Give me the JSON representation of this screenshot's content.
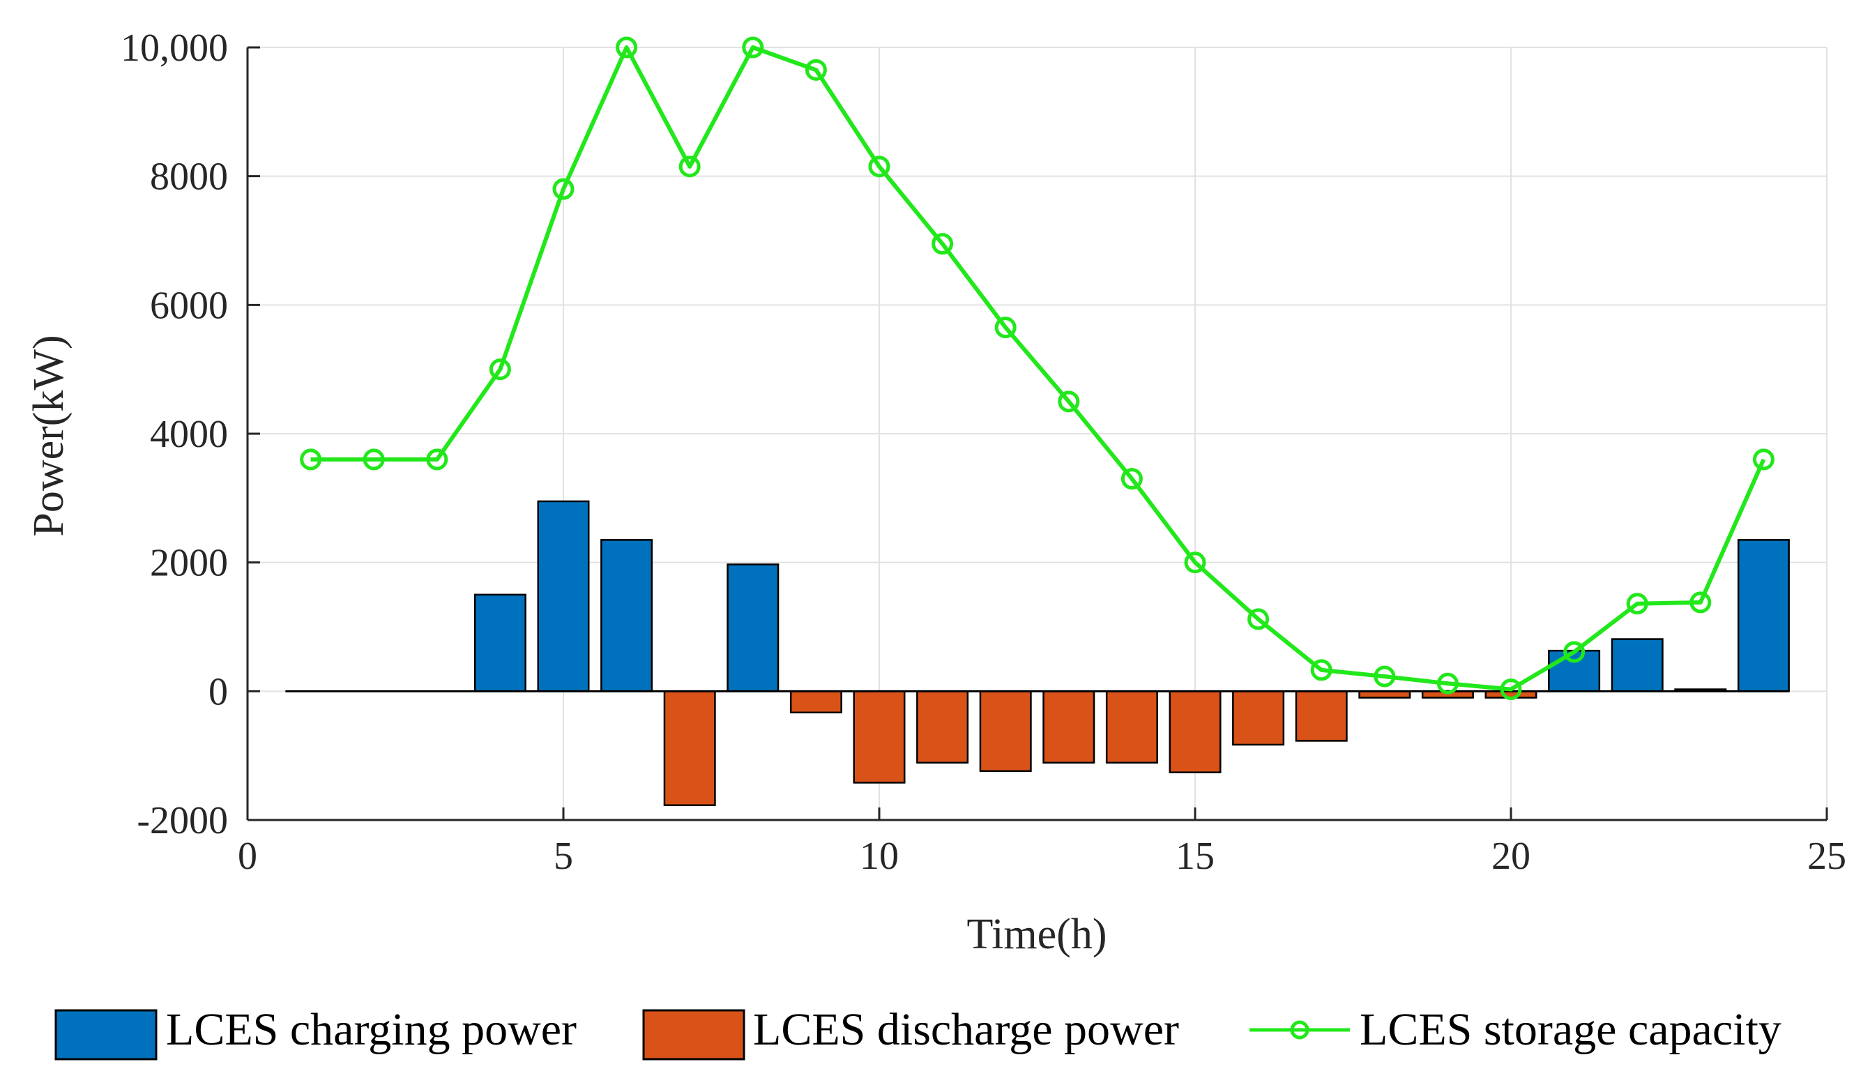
{
  "chart_data": {
    "type": "bar",
    "title": "",
    "xlabel": "Time(h)",
    "ylabel": "Power(kW)",
    "xlim": [
      0,
      25
    ],
    "ylim": [
      -2000,
      10000
    ],
    "xticks": [
      0,
      5,
      10,
      15,
      20,
      25
    ],
    "xtick_labels": [
      "0",
      "5",
      "10",
      "15",
      "20",
      "25"
    ],
    "yticks": [
      -2000,
      0,
      2000,
      4000,
      6000,
      8000,
      10000
    ],
    "ytick_labels": [
      "-2000",
      "0",
      "2000",
      "4000",
      "6000",
      "8000",
      "10,000"
    ],
    "grid": true,
    "legend_position": "bottom",
    "x": [
      1,
      2,
      3,
      4,
      5,
      6,
      7,
      8,
      9,
      10,
      11,
      12,
      13,
      14,
      15,
      16,
      17,
      18,
      19,
      20,
      21,
      22,
      23,
      24
    ],
    "series": [
      {
        "name": "LCES charging power",
        "kind": "bar",
        "color": "#0072BD",
        "values": [
          0,
          0,
          0,
          1500,
          2950,
          2350,
          0,
          1970,
          0,
          0,
          0,
          0,
          0,
          0,
          0,
          0,
          0,
          0,
          0,
          0,
          630,
          810,
          30,
          2350
        ]
      },
      {
        "name": "LCES discharge power",
        "kind": "bar",
        "color": "#D95319",
        "values": [
          0,
          0,
          0,
          0,
          0,
          0,
          -1770,
          0,
          -330,
          -1420,
          -1110,
          -1240,
          -1110,
          -1110,
          -1260,
          -830,
          -770,
          -100,
          -100,
          -100,
          0,
          0,
          0,
          0
        ]
      },
      {
        "name": "LCES storage capacity",
        "kind": "line",
        "marker": "circle",
        "color": "#22E81B",
        "values": [
          3600,
          3600,
          3600,
          5000,
          7800,
          10000,
          8150,
          10000,
          9650,
          8150,
          6950,
          5650,
          4500,
          3300,
          2000,
          1120,
          330,
          230,
          120,
          30,
          610,
          1360,
          1380,
          3600
        ]
      }
    ]
  }
}
